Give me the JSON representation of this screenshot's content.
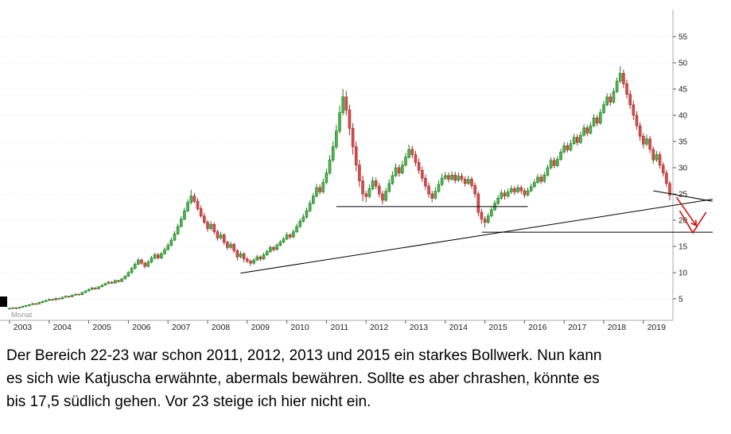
{
  "chart": {
    "timeframe_label": "Monat",
    "colors": {
      "up": "#1a7a1a",
      "up_fill": "#55b255",
      "down": "#9e2b25",
      "down_fill": "#d45050",
      "annotation": "#000000",
      "arrow": "#cc1111",
      "grid": "#ededed",
      "axis": "#aaaaaa",
      "axis_text": "#222222"
    }
  },
  "chart_data": {
    "type": "candlestick",
    "interval": "monthly",
    "start": "2003-01",
    "ylim": [
      0,
      57
    ],
    "grid": "faint-dotted-horizontal",
    "legend": "none",
    "x_years": [
      "2003",
      "2004",
      "2005",
      "2006",
      "2007",
      "2008",
      "2009",
      "2010",
      "2011",
      "2012",
      "2013",
      "2014",
      "2015",
      "2016",
      "2017",
      "2018",
      "2019"
    ],
    "y_ticks": [
      5,
      10,
      15,
      20,
      25,
      30,
      35,
      40,
      45,
      50,
      55
    ],
    "ohlc": [
      [
        3.1,
        3.3,
        3.0,
        3.2
      ],
      [
        3.2,
        3.45,
        3.1,
        3.3
      ],
      [
        3.3,
        3.4,
        3.05,
        3.2
      ],
      [
        3.2,
        3.5,
        3.15,
        3.4
      ],
      [
        3.4,
        3.7,
        3.3,
        3.6
      ],
      [
        3.6,
        3.85,
        3.5,
        3.7
      ],
      [
        3.7,
        4.0,
        3.6,
        3.9
      ],
      [
        3.9,
        4.25,
        3.8,
        4.1
      ],
      [
        4.1,
        4.2,
        3.9,
        4.0
      ],
      [
        4.0,
        4.45,
        3.95,
        4.3
      ],
      [
        4.3,
        4.65,
        4.2,
        4.5
      ],
      [
        4.5,
        4.85,
        4.4,
        4.7
      ],
      [
        4.7,
        5.05,
        4.6,
        4.9
      ],
      [
        4.9,
        5.0,
        4.65,
        4.8
      ],
      [
        4.8,
        5.25,
        4.7,
        5.1
      ],
      [
        5.1,
        5.2,
        4.85,
        5.0
      ],
      [
        5.0,
        5.45,
        4.9,
        5.3
      ],
      [
        5.3,
        5.65,
        5.2,
        5.5
      ],
      [
        5.5,
        5.6,
        5.25,
        5.4
      ],
      [
        5.4,
        5.85,
        5.3,
        5.7
      ],
      [
        5.7,
        6.05,
        5.6,
        5.9
      ],
      [
        5.9,
        6.0,
        5.65,
        5.8
      ],
      [
        5.8,
        6.35,
        5.7,
        6.2
      ],
      [
        6.2,
        6.65,
        6.1,
        6.5
      ],
      [
        6.5,
        6.95,
        6.4,
        6.8
      ],
      [
        6.8,
        7.25,
        6.7,
        7.1
      ],
      [
        7.1,
        7.2,
        6.75,
        6.9
      ],
      [
        6.9,
        7.45,
        6.8,
        7.3
      ],
      [
        7.3,
        7.8,
        7.2,
        7.6
      ],
      [
        7.6,
        8.1,
        7.5,
        7.9
      ],
      [
        7.9,
        8.4,
        7.8,
        8.2
      ],
      [
        8.2,
        8.35,
        7.85,
        8.0
      ],
      [
        8.0,
        8.7,
        7.9,
        8.5
      ],
      [
        8.5,
        8.65,
        8.1,
        8.3
      ],
      [
        8.3,
        9.0,
        8.2,
        8.8
      ],
      [
        8.8,
        9.5,
        8.7,
        9.3
      ],
      [
        9.3,
        10.3,
        9.2,
        10.0
      ],
      [
        10.0,
        11.1,
        9.8,
        10.8
      ],
      [
        10.8,
        12.0,
        10.6,
        11.6
      ],
      [
        11.6,
        12.8,
        11.4,
        12.4
      ],
      [
        12.4,
        12.7,
        11.5,
        11.8
      ],
      [
        11.8,
        12.1,
        10.8,
        11.2
      ],
      [
        11.2,
        12.4,
        11.0,
        12.0
      ],
      [
        12.0,
        13.2,
        11.8,
        12.8
      ],
      [
        12.8,
        13.8,
        12.5,
        13.4
      ],
      [
        13.4,
        13.7,
        12.5,
        12.8
      ],
      [
        12.8,
        14.0,
        12.6,
        13.6
      ],
      [
        13.6,
        14.8,
        13.4,
        14.4
      ],
      [
        14.4,
        15.7,
        14.2,
        15.2
      ],
      [
        15.2,
        16.7,
        15.0,
        16.2
      ],
      [
        16.2,
        17.9,
        16.0,
        17.4
      ],
      [
        17.4,
        19.3,
        17.2,
        18.8
      ],
      [
        18.8,
        20.8,
        18.6,
        20.2
      ],
      [
        20.2,
        22.4,
        20.0,
        21.8
      ],
      [
        21.8,
        24.0,
        21.5,
        23.4
      ],
      [
        23.4,
        25.8,
        23.0,
        24.6
      ],
      [
        24.6,
        25.2,
        23.2,
        23.6
      ],
      [
        23.6,
        24.2,
        21.8,
        22.2
      ],
      [
        22.2,
        22.8,
        20.4,
        20.8
      ],
      [
        20.8,
        21.4,
        19.2,
        19.6
      ],
      [
        19.6,
        20.0,
        17.8,
        18.4
      ],
      [
        18.4,
        19.8,
        18.0,
        19.2
      ],
      [
        19.2,
        19.6,
        17.3,
        17.8
      ],
      [
        17.8,
        18.2,
        16.1,
        16.6
      ],
      [
        16.6,
        17.8,
        16.3,
        17.2
      ],
      [
        17.2,
        17.5,
        15.3,
        15.8
      ],
      [
        15.8,
        16.1,
        14.3,
        14.8
      ],
      [
        14.8,
        15.9,
        14.5,
        15.4
      ],
      [
        15.4,
        15.7,
        13.7,
        14.2
      ],
      [
        14.2,
        14.5,
        12.3,
        13.0
      ],
      [
        13.0,
        14.1,
        12.7,
        13.6
      ],
      [
        13.6,
        13.9,
        12.0,
        12.6
      ],
      [
        12.6,
        13.0,
        11.8,
        12.2
      ],
      [
        12.2,
        12.5,
        11.3,
        11.8
      ],
      [
        11.8,
        12.8,
        11.5,
        12.4
      ],
      [
        12.4,
        13.4,
        12.2,
        13.0
      ],
      [
        13.0,
        13.3,
        12.2,
        12.6
      ],
      [
        12.6,
        13.8,
        12.4,
        13.4
      ],
      [
        13.4,
        14.4,
        13.2,
        14.0
      ],
      [
        14.0,
        15.2,
        13.8,
        14.8
      ],
      [
        14.8,
        15.1,
        14.0,
        14.4
      ],
      [
        14.4,
        15.6,
        14.2,
        15.2
      ],
      [
        15.2,
        16.2,
        15.0,
        15.8
      ],
      [
        15.8,
        16.8,
        15.6,
        16.4
      ],
      [
        16.4,
        17.7,
        16.2,
        17.2
      ],
      [
        17.2,
        17.5,
        16.4,
        16.8
      ],
      [
        16.8,
        18.3,
        16.6,
        17.8
      ],
      [
        17.8,
        19.3,
        17.6,
        18.8
      ],
      [
        18.8,
        20.3,
        18.5,
        19.8
      ],
      [
        19.8,
        21.2,
        19.5,
        20.6
      ],
      [
        20.6,
        22.4,
        20.3,
        21.8
      ],
      [
        21.8,
        23.8,
        21.5,
        23.2
      ],
      [
        23.2,
        25.2,
        23.0,
        24.6
      ],
      [
        24.6,
        26.9,
        24.3,
        26.2
      ],
      [
        26.2,
        26.8,
        24.9,
        25.4
      ],
      [
        25.4,
        27.9,
        25.1,
        27.2
      ],
      [
        27.2,
        29.8,
        26.8,
        29.0
      ],
      [
        29.0,
        32.4,
        28.6,
        31.5
      ],
      [
        31.5,
        35.0,
        31.0,
        34.0
      ],
      [
        34.0,
        38.2,
        33.5,
        37.0
      ],
      [
        37.0,
        41.8,
        36.5,
        40.5
      ],
      [
        40.5,
        45.0,
        40.0,
        43.5
      ],
      [
        43.5,
        44.6,
        40.0,
        41.0
      ],
      [
        41.0,
        42.0,
        36.2,
        37.5
      ],
      [
        37.5,
        38.5,
        32.5,
        34.0
      ],
      [
        34.0,
        35.0,
        29.3,
        30.5
      ],
      [
        30.5,
        31.5,
        26.3,
        27.5
      ],
      [
        27.5,
        28.5,
        23.6,
        25.0
      ],
      [
        25.0,
        25.6,
        23.4,
        24.5
      ],
      [
        24.5,
        26.8,
        24.2,
        26.0
      ],
      [
        26.0,
        28.3,
        25.7,
        27.5
      ],
      [
        27.5,
        28.1,
        25.9,
        26.5
      ],
      [
        26.5,
        27.1,
        24.3,
        25.0
      ],
      [
        25.0,
        25.6,
        23.0,
        23.8
      ],
      [
        23.8,
        26.2,
        23.5,
        25.5
      ],
      [
        25.5,
        27.8,
        25.2,
        27.0
      ],
      [
        27.0,
        29.3,
        26.7,
        28.5
      ],
      [
        28.5,
        30.8,
        28.2,
        30.0
      ],
      [
        30.0,
        30.6,
        28.3,
        29.0
      ],
      [
        29.0,
        31.3,
        28.7,
        30.5
      ],
      [
        30.5,
        32.8,
        30.2,
        32.0
      ],
      [
        32.0,
        34.4,
        31.7,
        33.5
      ],
      [
        33.5,
        34.2,
        31.8,
        32.5
      ],
      [
        32.5,
        33.2,
        30.3,
        31.0
      ],
      [
        31.0,
        31.8,
        28.8,
        29.5
      ],
      [
        29.5,
        30.2,
        27.3,
        28.0
      ],
      [
        28.0,
        28.7,
        25.8,
        26.5
      ],
      [
        26.5,
        27.2,
        24.3,
        25.0
      ],
      [
        25.0,
        25.6,
        23.4,
        24.2
      ],
      [
        24.2,
        26.3,
        23.9,
        25.5
      ],
      [
        25.5,
        27.6,
        25.2,
        26.8
      ],
      [
        26.8,
        28.9,
        26.5,
        28.0
      ],
      [
        28.0,
        29.2,
        27.6,
        28.5
      ],
      [
        28.5,
        29.1,
        27.2,
        27.8
      ],
      [
        27.8,
        29.3,
        27.5,
        28.6
      ],
      [
        28.6,
        29.2,
        27.0,
        27.6
      ],
      [
        27.6,
        29.1,
        27.3,
        28.4
      ],
      [
        28.4,
        29.0,
        27.2,
        27.8
      ],
      [
        27.8,
        28.4,
        26.4,
        27.0
      ],
      [
        27.0,
        28.5,
        26.7,
        27.8
      ],
      [
        27.8,
        28.3,
        26.0,
        26.6
      ],
      [
        26.6,
        27.2,
        24.3,
        25.0
      ],
      [
        25.0,
        25.5,
        20.7,
        21.5
      ],
      [
        21.5,
        22.2,
        19.3,
        20.2
      ],
      [
        20.2,
        20.8,
        18.6,
        19.6
      ],
      [
        19.6,
        21.4,
        19.3,
        20.8
      ],
      [
        20.8,
        22.6,
        20.5,
        22.0
      ],
      [
        22.0,
        23.8,
        21.7,
        23.2
      ],
      [
        23.2,
        24.8,
        22.9,
        24.2
      ],
      [
        24.2,
        25.8,
        23.9,
        25.2
      ],
      [
        25.2,
        25.8,
        23.9,
        24.6
      ],
      [
        24.6,
        26.0,
        24.2,
        25.4
      ],
      [
        25.4,
        26.6,
        25.0,
        26.0
      ],
      [
        26.0,
        26.5,
        24.8,
        25.4
      ],
      [
        25.4,
        26.8,
        25.1,
        26.2
      ],
      [
        26.2,
        26.7,
        25.0,
        25.6
      ],
      [
        25.6,
        26.1,
        24.2,
        24.8
      ],
      [
        24.8,
        26.2,
        24.5,
        25.6
      ],
      [
        25.6,
        27.0,
        25.3,
        26.4
      ],
      [
        26.4,
        27.8,
        26.1,
        27.2
      ],
      [
        27.2,
        28.8,
        26.9,
        28.2
      ],
      [
        28.2,
        28.8,
        26.9,
        27.4
      ],
      [
        27.4,
        29.2,
        27.1,
        28.6
      ],
      [
        28.6,
        30.6,
        28.3,
        30.0
      ],
      [
        30.0,
        32.0,
        29.7,
        31.4
      ],
      [
        31.4,
        32.0,
        29.9,
        30.4
      ],
      [
        30.4,
        32.2,
        30.1,
        31.6
      ],
      [
        31.6,
        33.6,
        31.3,
        33.0
      ],
      [
        33.0,
        34.9,
        32.7,
        34.2
      ],
      [
        34.2,
        34.8,
        32.9,
        33.4
      ],
      [
        33.4,
        35.3,
        33.1,
        34.6
      ],
      [
        34.6,
        36.5,
        34.3,
        35.8
      ],
      [
        35.8,
        36.4,
        34.2,
        34.8
      ],
      [
        34.8,
        36.9,
        34.5,
        36.2
      ],
      [
        36.2,
        38.3,
        35.9,
        37.6
      ],
      [
        37.6,
        38.2,
        36.0,
        36.6
      ],
      [
        36.6,
        38.7,
        36.3,
        38.0
      ],
      [
        38.0,
        40.2,
        37.7,
        39.5
      ],
      [
        39.5,
        40.1,
        37.9,
        38.5
      ],
      [
        38.5,
        41.2,
        38.2,
        40.5
      ],
      [
        40.5,
        42.7,
        40.2,
        42.0
      ],
      [
        42.0,
        44.2,
        41.7,
        43.5
      ],
      [
        43.5,
        44.2,
        41.8,
        42.5
      ],
      [
        42.5,
        45.2,
        42.2,
        44.5
      ],
      [
        44.5,
        47.2,
        44.2,
        46.5
      ],
      [
        46.5,
        49.3,
        46.1,
        48.0
      ],
      [
        48.0,
        48.7,
        45.2,
        46.0
      ],
      [
        46.0,
        46.8,
        43.2,
        44.0
      ],
      [
        44.0,
        44.8,
        41.2,
        42.0
      ],
      [
        42.0,
        42.8,
        39.1,
        40.0
      ],
      [
        40.0,
        40.8,
        37.2,
        38.0
      ],
      [
        38.0,
        38.7,
        35.1,
        36.0
      ],
      [
        36.0,
        36.6,
        33.7,
        34.5
      ],
      [
        34.5,
        36.3,
        34.1,
        35.5
      ],
      [
        35.5,
        36.1,
        32.8,
        33.5
      ],
      [
        33.5,
        34.1,
        30.8,
        31.5
      ],
      [
        31.5,
        33.2,
        31.1,
        32.5
      ],
      [
        32.5,
        33.1,
        29.8,
        30.5
      ],
      [
        30.5,
        31.1,
        28.3,
        29.0
      ],
      [
        29.0,
        29.6,
        26.3,
        27.0
      ],
      [
        27.0,
        27.5,
        23.8,
        24.8
      ]
    ],
    "annotations": {
      "horizontal_lines": [
        {
          "name": "bollwerk-22-23",
          "price": 22.6,
          "from": "2011-04",
          "to": "2016-02"
        },
        {
          "name": "support-17-5",
          "price": 17.7,
          "from": "2014-12",
          "to": "2020-10"
        }
      ],
      "trendlines": [
        {
          "name": "rising-trendline",
          "from": {
            "date": "2008-11",
            "price": 9.9
          },
          "to": {
            "date": "2020-10",
            "price": 24.0
          }
        },
        {
          "name": "falling-wedge-line",
          "from": {
            "date": "2019-04",
            "price": 25.6
          },
          "to": {
            "date": "2020-10",
            "price": 23.6
          }
        }
      ],
      "arrows": [
        {
          "name": "crash-arrow",
          "points": [
            [
              "2019-11",
              24.4
            ],
            [
              "2020-05",
              19.0
            ]
          ],
          "head": true
        },
        {
          "name": "target-v-17-5",
          "points": [
            [
              "2019-12",
              21.8
            ],
            [
              "2020-04",
              17.6
            ],
            [
              "2020-08",
              21.5
            ]
          ],
          "head": false
        }
      ]
    }
  },
  "caption": {
    "lines": [
      "Der Bereich 22-23 war schon 2011, 2012, 2013 und 2015 ein starkes Bollwerk. Nun kann",
      "es sich wie Katjuscha erwähnte, abermals bewähren. Sollte es aber chrashen, könnte es",
      "bis 17,5 südlich gehen. Vor 23 steige ich hier nicht ein."
    ]
  }
}
